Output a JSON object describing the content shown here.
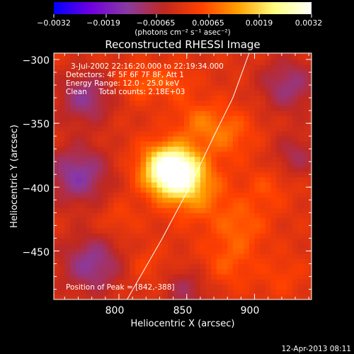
{
  "chart_data": {
    "type": "heatmap",
    "title": "Reconstructed RHESSI Image",
    "xlabel": "Heliocentric X (arcsec)",
    "ylabel": "Heliocentric Y (arcsec)",
    "xlim": [
      752,
      942
    ],
    "ylim": [
      -488,
      -295
    ],
    "x_ticks": [
      800,
      850,
      900
    ],
    "x_tick_labels": [
      "800",
      "850",
      "900"
    ],
    "y_ticks": [
      -300,
      -350,
      -400,
      -450
    ],
    "y_tick_labels": [
      "−300",
      "−350",
      "−400",
      "−450"
    ],
    "colorbar": {
      "range": [
        -0.0032,
        0.0032
      ],
      "ticks": [
        -0.0032,
        -0.0019,
        -0.00065,
        0.00065,
        0.0019,
        0.0032
      ],
      "tick_labels": [
        "−0.0032",
        "−0.0019",
        "−0.00065",
        "0.00065",
        "0.0019",
        "0.0032"
      ],
      "unit_label": "(photons cm⁻² s⁻¹ asec⁻²)",
      "colormap": [
        "#0000ff",
        "#7000e0",
        "#8a3aa0",
        "#c02820",
        "#ff4000",
        "#ffa000",
        "#ffff80",
        "#ffffff"
      ]
    },
    "sources": [
      {
        "x": 842,
        "y": -388,
        "amp": 0.0032,
        "sigma": 13
      },
      {
        "x": 832,
        "y": -384,
        "amp": 0.0012,
        "sigma": 14
      },
      {
        "x": 858,
        "y": -405,
        "amp": 0.0009,
        "sigma": 16
      },
      {
        "x": 880,
        "y": -358,
        "amp": 0.0008,
        "sigma": 14
      },
      {
        "x": 858,
        "y": -348,
        "amp": 0.0007,
        "sigma": 12
      },
      {
        "x": 815,
        "y": -318,
        "amp": 0.0007,
        "sigma": 10
      },
      {
        "x": 840,
        "y": -318,
        "amp": 0.0006,
        "sigma": 10
      },
      {
        "x": 890,
        "y": -430,
        "amp": 0.0007,
        "sigma": 14
      },
      {
        "x": 880,
        "y": -460,
        "amp": 0.0006,
        "sigma": 14
      },
      {
        "x": 910,
        "y": -400,
        "amp": 0.0005,
        "sigma": 12
      },
      {
        "x": 920,
        "y": -470,
        "amp": 0.0004,
        "sigma": 12
      },
      {
        "x": 800,
        "y": -425,
        "amp": 0.0004,
        "sigma": 10
      },
      {
        "x": 820,
        "y": -460,
        "amp": 0.0004,
        "sigma": 10
      },
      {
        "x": 775,
        "y": -330,
        "amp": -0.0012,
        "sigma": 14
      },
      {
        "x": 770,
        "y": -390,
        "amp": -0.0014,
        "sigma": 16
      },
      {
        "x": 780,
        "y": -460,
        "amp": -0.0013,
        "sigma": 16
      },
      {
        "x": 925,
        "y": -320,
        "amp": -0.0011,
        "sigma": 15
      },
      {
        "x": 930,
        "y": -375,
        "amp": -0.0008,
        "sigma": 12
      },
      {
        "x": 850,
        "y": -480,
        "amp": -0.0008,
        "sigma": 12
      }
    ],
    "limb": {
      "points": [
        [
          806,
          -488
        ],
        [
          832,
          -440
        ],
        [
          852,
          -400
        ],
        [
          870,
          -360
        ],
        [
          884,
          -330
        ],
        [
          896,
          -295
        ]
      ]
    },
    "peak_position": [
      842,
      -388
    ]
  },
  "annotations": {
    "time_range": "3-Jul-2002 22:16:20.000 to 22:19:34.000",
    "detectors": "Detectors: 4F 5F 6F 7F 8F, Att 1",
    "energy_range": "Energy Range: 12.0 - 25.0 keV",
    "method_counts": "Clean     Total counts: 2.18E+03",
    "peak": "Position of Peak = [842,-388]"
  },
  "footer": {
    "date": "12-Apr-2013 08:11"
  }
}
